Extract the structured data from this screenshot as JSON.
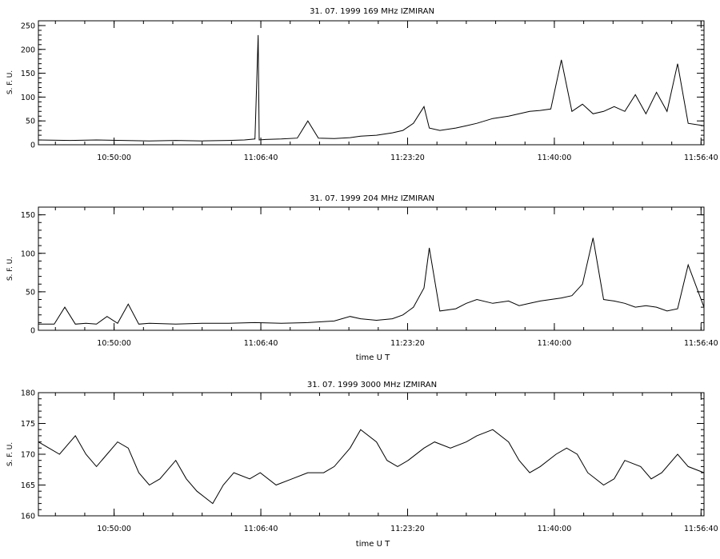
{
  "figure": {
    "background": "#ffffff",
    "line_color": "#000000"
  },
  "chart_data": [
    {
      "type": "line",
      "title": "31. 07. 1999    169 MHz    IZMIRAN",
      "ylabel": "S. F. U.",
      "xlabel": "",
      "x_tick_labels": [
        "10:50:00",
        "11:06:40",
        "11:23:20",
        "11:40:00",
        "11:56:40"
      ],
      "x_tick_values": [
        10.8333,
        11.1111,
        11.3889,
        11.6667,
        11.9444
      ],
      "xlim": [
        10.69,
        11.95
      ],
      "ylim": [
        0,
        260
      ],
      "y_ticks": [
        0,
        50,
        100,
        150,
        200,
        250
      ],
      "series": [
        {
          "x": [
            10.69,
            10.75,
            10.8,
            10.85,
            10.9,
            10.95,
            11.0,
            11.05,
            11.08,
            11.1,
            11.106,
            11.108,
            11.12,
            11.15,
            11.18,
            11.2,
            11.22,
            11.25,
            11.28,
            11.3,
            11.33,
            11.36,
            11.38,
            11.4,
            11.42,
            11.43,
            11.45,
            11.48,
            11.5,
            11.52,
            11.55,
            11.58,
            11.6,
            11.62,
            11.64,
            11.66,
            11.68,
            11.7,
            11.72,
            11.74,
            11.76,
            11.78,
            11.8,
            11.82,
            11.84,
            11.86,
            11.88,
            11.9,
            11.92,
            11.95
          ],
          "y": [
            10,
            9,
            10,
            9,
            8,
            9,
            8,
            9,
            10,
            12,
            230,
            10,
            11,
            12,
            14,
            50,
            14,
            13,
            15,
            18,
            20,
            25,
            30,
            45,
            80,
            35,
            30,
            35,
            40,
            45,
            55,
            60,
            65,
            70,
            72,
            75,
            178,
            70,
            85,
            65,
            70,
            80,
            70,
            105,
            65,
            110,
            70,
            170,
            45,
            40
          ]
        }
      ]
    },
    {
      "type": "line",
      "title": "31. 07. 1999    204 MHz    IZMIRAN",
      "ylabel": "S. F. U.",
      "xlabel": "time   U T",
      "x_tick_labels": [
        "10:50:00",
        "11:06:40",
        "11:23:20",
        "11:40:00",
        "11:56:40"
      ],
      "x_tick_values": [
        10.8333,
        11.1111,
        11.3889,
        11.6667,
        11.9444
      ],
      "xlim": [
        10.69,
        11.95
      ],
      "ylim": [
        0,
        160
      ],
      "y_ticks": [
        0,
        50,
        100,
        150
      ],
      "series": [
        {
          "x": [
            10.69,
            10.72,
            10.74,
            10.76,
            10.78,
            10.8,
            10.82,
            10.84,
            10.86,
            10.88,
            10.9,
            10.95,
            11.0,
            11.05,
            11.1,
            11.15,
            11.2,
            11.25,
            11.28,
            11.3,
            11.33,
            11.36,
            11.38,
            11.4,
            11.42,
            11.43,
            11.45,
            11.48,
            11.5,
            11.52,
            11.55,
            11.58,
            11.6,
            11.62,
            11.64,
            11.66,
            11.68,
            11.7,
            11.72,
            11.74,
            11.76,
            11.78,
            11.8,
            11.82,
            11.84,
            11.86,
            11.88,
            11.9,
            11.92,
            11.95
          ],
          "y": [
            8,
            8,
            30,
            8,
            9,
            8,
            18,
            9,
            34,
            8,
            9,
            8,
            9,
            9,
            10,
            9,
            10,
            12,
            18,
            15,
            13,
            15,
            20,
            30,
            55,
            107,
            25,
            28,
            35,
            40,
            35,
            38,
            32,
            35,
            38,
            40,
            42,
            45,
            60,
            120,
            40,
            38,
            35,
            30,
            32,
            30,
            25,
            28,
            85,
            30
          ]
        }
      ]
    },
    {
      "type": "line",
      "title": "31. 07. 1999    3000 MHz    IZMIRAN",
      "ylabel": "S. F. U.",
      "xlabel": "time   U T",
      "x_tick_labels": [
        "10:50:00",
        "11:06:40",
        "11:23:20",
        "11:40:00",
        "11:56:40"
      ],
      "x_tick_values": [
        10.8333,
        11.1111,
        11.3889,
        11.6667,
        11.9444
      ],
      "xlim": [
        10.69,
        11.95
      ],
      "ylim": [
        160,
        180
      ],
      "y_ticks": [
        160,
        165,
        170,
        175,
        180
      ],
      "series": [
        {
          "x": [
            10.69,
            10.71,
            10.73,
            10.75,
            10.76,
            10.78,
            10.8,
            10.82,
            10.84,
            10.86,
            10.88,
            10.9,
            10.92,
            10.95,
            10.97,
            10.99,
            11.02,
            11.04,
            11.06,
            11.09,
            11.11,
            11.14,
            11.17,
            11.2,
            11.23,
            11.25,
            11.28,
            11.3,
            11.33,
            11.35,
            11.37,
            11.39,
            11.42,
            11.44,
            11.47,
            11.5,
            11.52,
            11.55,
            11.58,
            11.6,
            11.62,
            11.64,
            11.67,
            11.69,
            11.71,
            11.73,
            11.76,
            11.78,
            11.8,
            11.83,
            11.85,
            11.87,
            11.9,
            11.92,
            11.95
          ],
          "y": [
            172,
            171,
            170,
            172,
            173,
            170,
            168,
            170,
            172,
            171,
            167,
            165,
            166,
            169,
            166,
            164,
            162,
            165,
            167,
            166,
            167,
            165,
            166,
            167,
            167,
            168,
            171,
            174,
            172,
            169,
            168,
            169,
            171,
            172,
            171,
            172,
            173,
            174,
            172,
            169,
            167,
            168,
            170,
            171,
            170,
            167,
            165,
            166,
            169,
            168,
            166,
            167,
            170,
            168,
            167
          ]
        }
      ]
    }
  ]
}
